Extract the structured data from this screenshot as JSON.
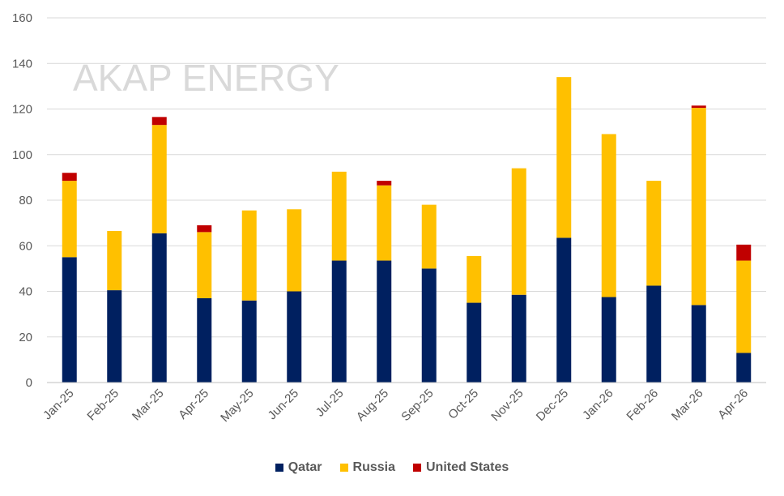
{
  "watermark": "AKAP ENERGY",
  "chart_data": {
    "type": "bar",
    "stacked": true,
    "categories": [
      "Jan-25",
      "Feb-25",
      "Mar-25",
      "Apr-25",
      "May-25",
      "Jun-25",
      "Jul-25",
      "Aug-25",
      "Sep-25",
      "Oct-25",
      "Nov-25",
      "Dec-25",
      "Jan-26",
      "Feb-26",
      "Mar-26",
      "Apr-26"
    ],
    "series": [
      {
        "name": "Qatar",
        "color": "#002060",
        "values": [
          55,
          40.5,
          65.5,
          37,
          36,
          40,
          53.5,
          53.5,
          50,
          35,
          38.5,
          63.5,
          37.5,
          42.5,
          34,
          13
        ]
      },
      {
        "name": "Russia",
        "color": "#FFC000",
        "values": [
          33.5,
          26,
          47.5,
          29,
          39.5,
          36,
          39,
          33,
          28,
          20.5,
          55.5,
          70.5,
          71.5,
          46,
          86.5,
          40.5
        ]
      },
      {
        "name": "United States",
        "color": "#C00000",
        "values": [
          3.5,
          0,
          3.5,
          3,
          0,
          0,
          0,
          2,
          0,
          0,
          0,
          0,
          0,
          0,
          1,
          7
        ]
      }
    ],
    "ylim": [
      0,
      160
    ],
    "yticks": [
      0,
      20,
      40,
      60,
      80,
      100,
      120,
      140,
      160
    ],
    "grid": true,
    "legend": "bottom-center",
    "xlabel": "",
    "ylabel": "",
    "title": ""
  }
}
